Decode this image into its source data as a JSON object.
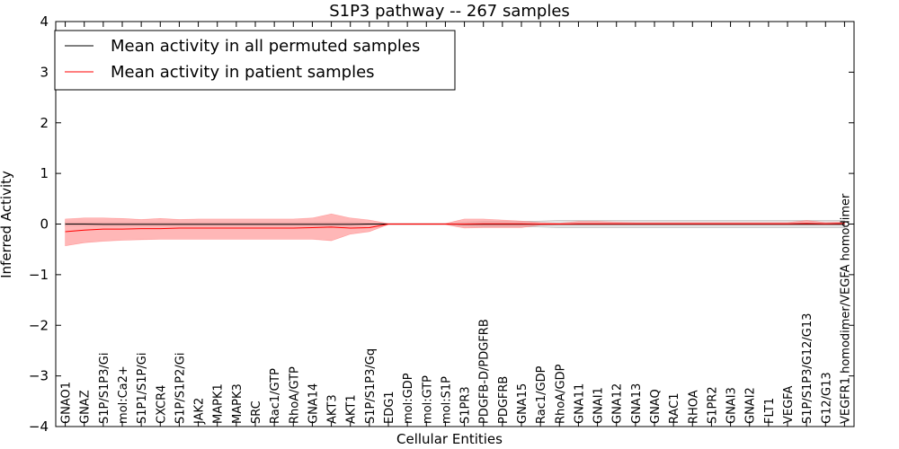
{
  "chart_data": {
    "type": "line",
    "title": "S1P3 pathway -- 267 samples",
    "xlabel": "Cellular Entities",
    "ylabel": "Inferred Activity",
    "ylim": [
      -4,
      4
    ],
    "yticks": [
      4,
      3,
      2,
      1,
      0,
      -1,
      -2,
      -3,
      -4
    ],
    "ytick_labels": [
      "4",
      "3",
      "2",
      "1",
      "0",
      "−1",
      "−2",
      "−3",
      "−4"
    ],
    "grid": false,
    "legend_position": "top-left",
    "categories": [
      "GNAO1",
      "GNAZ",
      "S1P/S1P3/Gi",
      "mol:Ca2+",
      "S1P1/S1P/Gi",
      "CXCR4",
      "S1P/S1P2/Gi",
      "JAK2",
      "MAPK1",
      "MAPK3",
      "SRC",
      "Rac1/GTP",
      "RhoA/GTP",
      "GNA14",
      "AKT3",
      "AKT1",
      "S1P/S1P3/Gq",
      "EDG1",
      "mol:GDP",
      "mol:GTP",
      "mol:S1P",
      "S1PR3",
      "PDGFB-D/PDGFRB",
      "PDGFRB",
      "GNA15",
      "Rac1/GDP",
      "RhoA/GDP",
      "GNA11",
      "GNAI1",
      "GNA12",
      "GNA13",
      "GNAQ",
      "RAC1",
      "RHOA",
      "S1PR2",
      "GNAI3",
      "GNAI2",
      "FLT1",
      "VEGFA",
      "S1P/S1P3/G12/G13",
      "G12/G13",
      "VEGFR1 homodimer/VEGFA homodimer"
    ],
    "series": [
      {
        "name": "Mean activity in all permuted samples",
        "color": "#000000",
        "band_color": "#cccccc",
        "values": [
          0,
          0,
          -0.005,
          -0.005,
          -0.005,
          -0.005,
          -0.005,
          -0.005,
          -0.005,
          -0.005,
          -0.005,
          -0.005,
          -0.005,
          -0.005,
          -0.005,
          -0.005,
          0,
          0,
          0,
          0,
          0,
          -0.005,
          -0.005,
          -0.005,
          -0.005,
          -0.005,
          -0.005,
          -0.005,
          -0.005,
          -0.005,
          -0.005,
          -0.005,
          -0.005,
          -0.005,
          -0.005,
          -0.005,
          -0.005,
          -0.005,
          -0.005,
          -0.005,
          -0.005,
          -0.005
        ],
        "lower": [
          -0.03,
          -0.03,
          -0.03,
          -0.03,
          -0.03,
          -0.03,
          -0.03,
          -0.03,
          -0.03,
          -0.03,
          -0.03,
          -0.03,
          -0.03,
          -0.03,
          -0.04,
          -0.04,
          -0.02,
          -0.01,
          -0.01,
          -0.01,
          -0.01,
          -0.04,
          -0.05,
          -0.05,
          -0.05,
          -0.06,
          -0.07,
          -0.07,
          -0.07,
          -0.07,
          -0.07,
          -0.07,
          -0.07,
          -0.07,
          -0.07,
          -0.07,
          -0.07,
          -0.07,
          -0.07,
          -0.07,
          -0.07,
          -0.07
        ],
        "upper": [
          0.03,
          0.03,
          0.03,
          0.03,
          0.03,
          0.03,
          0.03,
          0.03,
          0.03,
          0.03,
          0.03,
          0.03,
          0.03,
          0.03,
          0.04,
          0.04,
          0.02,
          0.01,
          0.01,
          0.01,
          0.01,
          0.04,
          0.05,
          0.05,
          0.05,
          0.06,
          0.07,
          0.07,
          0.07,
          0.07,
          0.07,
          0.07,
          0.07,
          0.07,
          0.07,
          0.07,
          0.07,
          0.07,
          0.07,
          0.07,
          0.07,
          0.07
        ]
      },
      {
        "name": "Mean activity in patient samples",
        "color": "#ff0000",
        "band_color": "#ff9999",
        "values": [
          -0.15,
          -0.12,
          -0.1,
          -0.1,
          -0.09,
          -0.09,
          -0.08,
          -0.08,
          -0.08,
          -0.08,
          -0.08,
          -0.08,
          -0.08,
          -0.07,
          -0.06,
          -0.08,
          -0.07,
          0,
          0,
          0,
          0,
          0,
          0.005,
          0.005,
          0.005,
          0,
          0,
          0.005,
          0.005,
          0.005,
          0.005,
          0.005,
          0.005,
          0.005,
          0.005,
          0.005,
          0.005,
          0.005,
          0.005,
          0.01,
          0.005,
          0.01
        ],
        "lower": [
          -0.43,
          -0.37,
          -0.34,
          -0.32,
          -0.31,
          -0.3,
          -0.3,
          -0.3,
          -0.3,
          -0.3,
          -0.3,
          -0.3,
          -0.3,
          -0.3,
          -0.33,
          -0.2,
          -0.15,
          -0.01,
          -0.01,
          -0.01,
          -0.01,
          -0.08,
          -0.07,
          -0.07,
          -0.07,
          -0.02,
          -0.01,
          -0.01,
          -0.01,
          -0.01,
          -0.01,
          -0.01,
          -0.01,
          -0.01,
          -0.01,
          -0.01,
          -0.01,
          -0.01,
          -0.01,
          -0.01,
          -0.01,
          -0.01
        ],
        "upper": [
          0.1,
          0.12,
          0.12,
          0.11,
          0.09,
          0.11,
          0.09,
          0.1,
          0.1,
          0.1,
          0.1,
          0.1,
          0.1,
          0.12,
          0.2,
          0.12,
          0.08,
          0.01,
          0.01,
          0.01,
          0.01,
          0.1,
          0.1,
          0.08,
          0.06,
          0.03,
          0.02,
          0.05,
          0.05,
          0.04,
          0.03,
          0.03,
          0.03,
          0.03,
          0.03,
          0.03,
          0.03,
          0.03,
          0.03,
          0.07,
          0.03,
          0.04
        ]
      }
    ]
  }
}
